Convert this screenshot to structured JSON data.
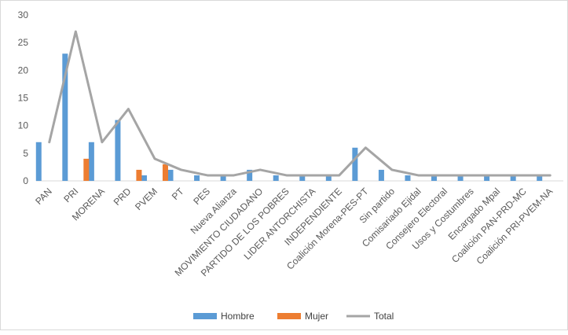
{
  "chart_data": {
    "type": "bar",
    "title": "",
    "xlabel": "",
    "ylabel": "",
    "ylim": [
      0,
      30
    ],
    "yticks": [
      0,
      5,
      10,
      15,
      20,
      25,
      30
    ],
    "grid": false,
    "legend_placement": "bottom",
    "categories": [
      "PAN",
      "PRI",
      "MORENA",
      "PRD",
      "PVEM",
      "PT",
      "PES",
      "Nueva Alianza",
      "MOVIMIENTO CIUDADANO",
      "PARTIDO DE LOS POBRES",
      "LIDER ANTORCHISTA",
      "INDEPENDIENTE",
      "Coalición Morena-PES-PT",
      "Sin partido",
      "Comisariado Ejidal",
      "Consejero Electoral",
      "Usos y Costumbres",
      "Encargado Mpal",
      "Coalición PAN-PRD-MC",
      "Coalición PRI-PVEM-NA"
    ],
    "series": [
      {
        "name": "Hombre",
        "kind": "bar",
        "color": "#5b9bd5",
        "values": [
          7,
          23,
          7,
          11,
          1,
          2,
          1,
          1,
          2,
          1,
          1,
          1,
          6,
          2,
          1,
          1,
          1,
          1,
          1,
          1
        ]
      },
      {
        "name": "Mujer",
        "kind": "bar",
        "color": "#ed7d31",
        "values": [
          0,
          4,
          0,
          2,
          3,
          0,
          0,
          0,
          0,
          0,
          0,
          0,
          0,
          0,
          0,
          0,
          0,
          0,
          0,
          0
        ]
      },
      {
        "name": "Total",
        "kind": "line",
        "color": "#a5a5a5",
        "values": [
          7,
          27,
          7,
          13,
          4,
          2,
          1,
          1,
          2,
          1,
          1,
          1,
          6,
          2,
          1,
          1,
          1,
          1,
          1,
          1
        ]
      }
    ]
  }
}
